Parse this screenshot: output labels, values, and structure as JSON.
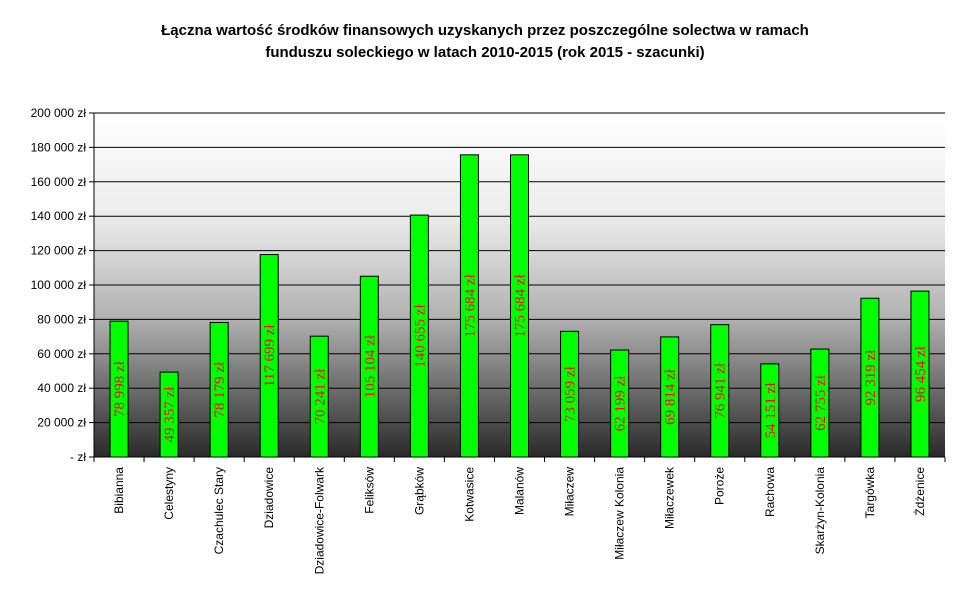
{
  "chart_data": {
    "type": "bar",
    "title_lines": [
      "Łączna wartość środków finansowych uzyskanych przez poszczególne solectwa w ramach",
      "funduszu soleckiego w latach 2010-2015 (rok 2015 - szacunki)"
    ],
    "categories": [
      "Bibianna",
      "Celestyny",
      "Czachulec Stary",
      "Dziadowice",
      "Dziadowice-Folwark",
      "Feliksów",
      "Grąbków",
      "Kotwasice",
      "Malanów",
      "Miłaczew",
      "Miłaczew Kolonia",
      "Miłaczewek",
      "Poroże",
      "Rachowa",
      "Skarżyn-Kolonia",
      "Targówka",
      "Żdżenice"
    ],
    "values": [
      78998,
      49357,
      78179,
      117699,
      70241,
      105104,
      140655,
      175684,
      175684,
      73059,
      62199,
      69814,
      76941,
      54151,
      62755,
      92319,
      96454
    ],
    "data_labels": [
      "78 998 zł",
      "49 357 zł",
      "78 179 zł",
      "117 699 zł",
      "70 241 zł",
      "105 104 zł",
      "140 655 zł",
      "175 684 zł",
      "175 684 zł",
      "73 059 zł",
      "62 199 zł",
      "69 814 zł",
      "76 941 zł",
      "54 151 zł",
      "62 755 zł",
      "92 319 zł",
      "96 454 zł"
    ],
    "y_ticks": [
      "- zł",
      "20 000 zł",
      "40 000 zł",
      "60 000 zł",
      "80 000 zł",
      "100 000 zł",
      "120 000 zł",
      "140 000 zł",
      "160 000 zł",
      "180 000 zł",
      "200 000 zł"
    ],
    "ylim": [
      0,
      200000
    ],
    "grid": true,
    "colors": {
      "bar_fill": "#00ff00",
      "bar_stroke": "#000000",
      "data_label": "#ff0000",
      "plot_bg_top": "#ffffff",
      "plot_bg_bottom": "#2a2a2a",
      "gridline": "#000000"
    }
  }
}
